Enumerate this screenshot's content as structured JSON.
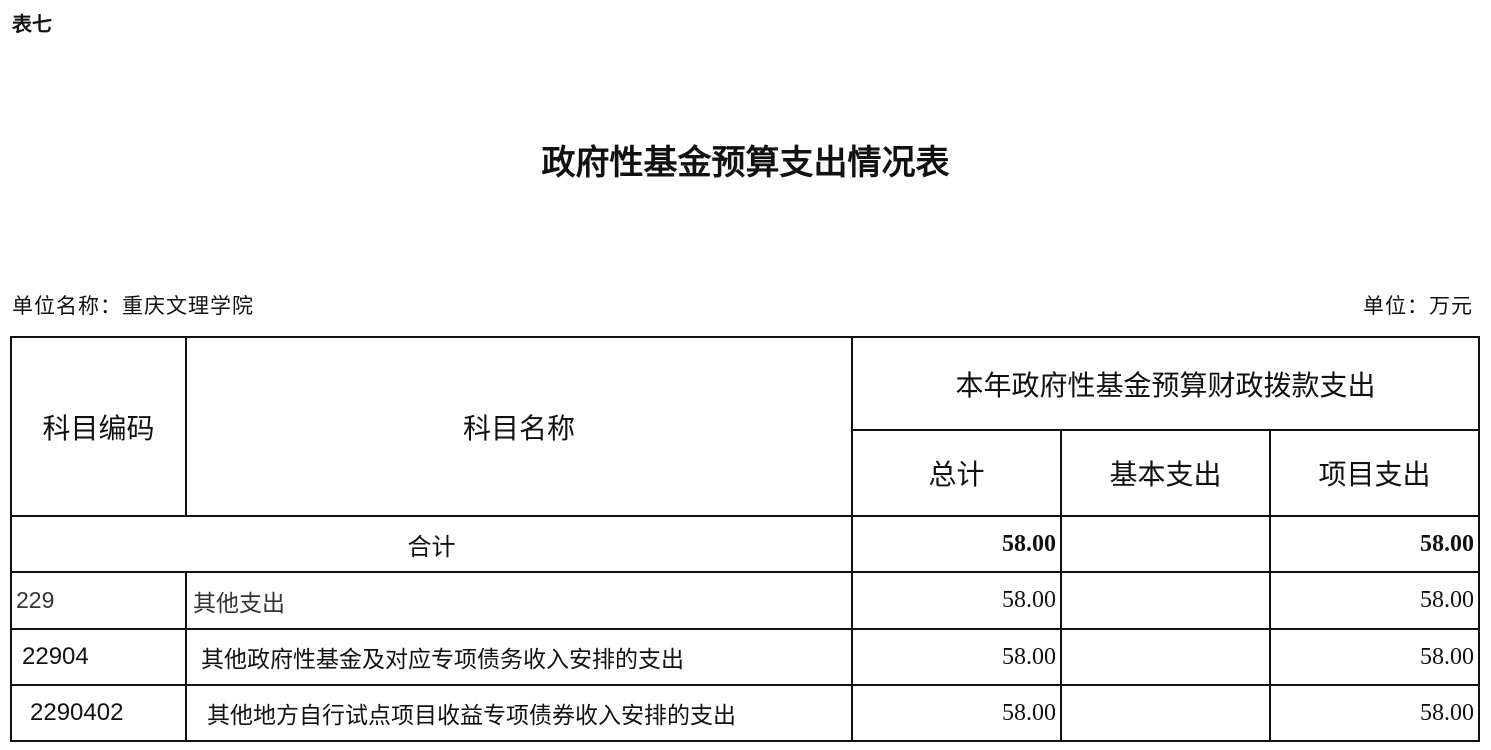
{
  "table_tag": "表七",
  "title": "政府性基金预算支出情况表",
  "unit_name": "单位名称：重庆文理学院",
  "unit": "单位：万元",
  "headers": {
    "code": "科目编码",
    "name": "科目名称",
    "group": "本年政府性基金预算财政拨款支出",
    "total": "总计",
    "basic": "基本支出",
    "project": "项目支出"
  },
  "total_row": {
    "label": "合计",
    "total": "58.00",
    "basic": "",
    "project": "58.00"
  },
  "rows": [
    {
      "code": "229",
      "name": "其他支出",
      "total": "58.00",
      "basic": "",
      "project": "58.00"
    },
    {
      "code": "22904",
      "name": "其他政府性基金及对应专项债务收入安排的支出",
      "total": "58.00",
      "basic": "",
      "project": "58.00"
    },
    {
      "code": "2290402",
      "name": "其他地方自行试点项目收益专项债券收入安排的支出",
      "total": "58.00",
      "basic": "",
      "project": "58.00"
    }
  ]
}
